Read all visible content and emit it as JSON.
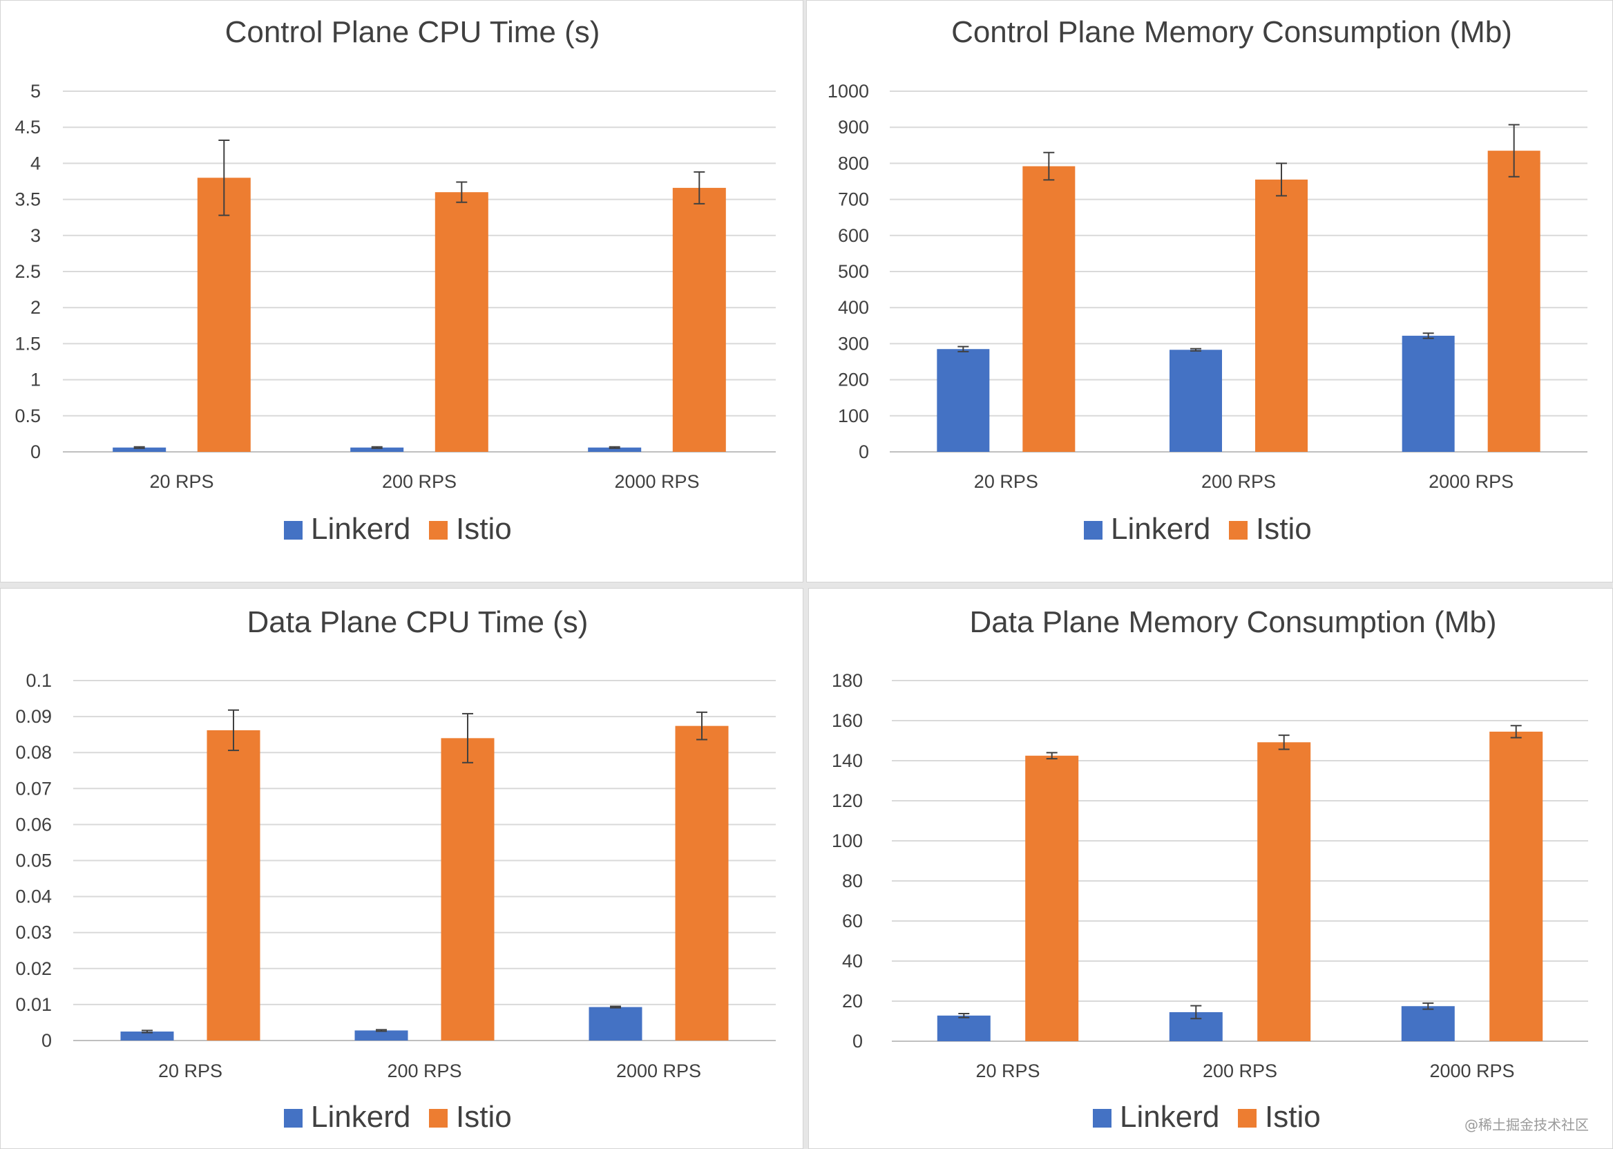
{
  "colors": {
    "linkerd": "#4472C4",
    "istio": "#ED7D31",
    "grid": "#D9D9D9",
    "text": "#404040",
    "error": "#404040"
  },
  "watermark": "@稀土掘金技术社区",
  "chart_data": [
    {
      "type": "bar",
      "title": "Control Plane CPU Time (s)",
      "categories": [
        "20 RPS",
        "200 RPS",
        "2000 RPS"
      ],
      "ylim": [
        0,
        5
      ],
      "yticks": [
        "0",
        "0.5",
        "1",
        "1.5",
        "2",
        "2.5",
        "3",
        "3.5",
        "4",
        "4.5",
        "5"
      ],
      "grid": true,
      "legend": "bottom",
      "series": [
        {
          "name": "Linkerd",
          "values": [
            0.06,
            0.06,
            0.06
          ],
          "errors": [
            0.01,
            0.01,
            0.01
          ]
        },
        {
          "name": "Istio",
          "values": [
            3.8,
            3.6,
            3.66
          ],
          "errors": [
            0.52,
            0.14,
            0.22
          ]
        }
      ]
    },
    {
      "type": "bar",
      "title": "Control Plane Memory Consumption (Mb)",
      "categories": [
        "20 RPS",
        "200 RPS",
        "2000 RPS"
      ],
      "ylim": [
        0,
        1000
      ],
      "yticks": [
        "0",
        "100",
        "200",
        "300",
        "400",
        "500",
        "600",
        "700",
        "800",
        "900",
        "1000"
      ],
      "grid": true,
      "legend": "bottom",
      "series": [
        {
          "name": "Linkerd",
          "values": [
            285,
            283,
            322
          ],
          "errors": [
            7,
            3,
            7
          ]
        },
        {
          "name": "Istio",
          "values": [
            792,
            755,
            835
          ],
          "errors": [
            38,
            45,
            72
          ]
        }
      ]
    },
    {
      "type": "bar",
      "title": "Data Plane CPU Time (s)",
      "categories": [
        "20 RPS",
        "200 RPS",
        "2000 RPS"
      ],
      "ylim": [
        0,
        0.1
      ],
      "yticks": [
        "0",
        "0.01",
        "0.02",
        "0.03",
        "0.04",
        "0.05",
        "0.06",
        "0.07",
        "0.08",
        "0.09",
        "0.1"
      ],
      "grid": true,
      "legend": "bottom",
      "series": [
        {
          "name": "Linkerd",
          "values": [
            0.0025,
            0.0028,
            0.0093
          ],
          "errors": [
            0.0003,
            0.0002,
            0.0002
          ]
        },
        {
          "name": "Istio",
          "values": [
            0.0862,
            0.084,
            0.0874
          ],
          "errors": [
            0.0056,
            0.0068,
            0.0038
          ]
        }
      ]
    },
    {
      "type": "bar",
      "title": "Data Plane Memory Consumption (Mb)",
      "categories": [
        "20 RPS",
        "200 RPS",
        "2000 RPS"
      ],
      "ylim": [
        0,
        180
      ],
      "yticks": [
        "0",
        "20",
        "40",
        "60",
        "80",
        "100",
        "120",
        "140",
        "160",
        "180"
      ],
      "grid": true,
      "legend": "bottom",
      "series": [
        {
          "name": "Linkerd",
          "values": [
            12.8,
            14.5,
            17.5
          ],
          "errors": [
            1.0,
            3.2,
            1.5
          ]
        },
        {
          "name": "Istio",
          "values": [
            142.5,
            149.2,
            154.5
          ],
          "errors": [
            1.5,
            3.5,
            3.0
          ]
        }
      ]
    }
  ]
}
